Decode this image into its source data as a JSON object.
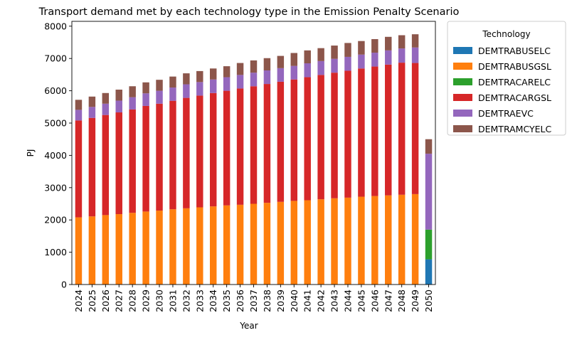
{
  "chart_data": {
    "type": "bar",
    "stacked": true,
    "title": "Transport demand met by each technology type in the Emission Penalty Scenario",
    "xlabel": "Year",
    "ylabel": "PJ",
    "ylim": [
      0,
      8150
    ],
    "yticks": [
      0,
      1000,
      2000,
      3000,
      4000,
      5000,
      6000,
      7000,
      8000
    ],
    "grid": false,
    "legend_title": "Technology",
    "legend_position": "outside-right",
    "categories": [
      "2024",
      "2025",
      "2026",
      "2027",
      "2028",
      "2029",
      "2030",
      "2031",
      "2032",
      "2033",
      "2034",
      "2035",
      "2036",
      "2037",
      "2038",
      "2039",
      "2040",
      "2041",
      "2042",
      "2043",
      "2044",
      "2045",
      "2046",
      "2047",
      "2048",
      "2049",
      "2050"
    ],
    "series": [
      {
        "name": "DEMTRABUSELC",
        "color": "#1f77b4",
        "values": [
          0,
          0,
          0,
          0,
          0,
          0,
          0,
          0,
          0,
          0,
          0,
          0,
          0,
          0,
          0,
          0,
          0,
          0,
          0,
          0,
          0,
          0,
          0,
          0,
          0,
          0,
          780
        ]
      },
      {
        "name": "DEMTRABUSGSL",
        "color": "#ff7f0e",
        "values": [
          2080,
          2110,
          2150,
          2180,
          2220,
          2260,
          2290,
          2330,
          2360,
          2390,
          2420,
          2450,
          2470,
          2500,
          2530,
          2560,
          2590,
          2610,
          2640,
          2670,
          2690,
          2720,
          2740,
          2760,
          2780,
          2800,
          0
        ]
      },
      {
        "name": "DEMTRACARELC",
        "color": "#2ca02c",
        "values": [
          0,
          0,
          0,
          0,
          0,
          0,
          0,
          0,
          0,
          0,
          0,
          0,
          0,
          0,
          0,
          0,
          0,
          0,
          0,
          0,
          0,
          0,
          0,
          0,
          0,
          0,
          920
        ]
      },
      {
        "name": "DEMTRACARGSL",
        "color": "#d62728",
        "values": [
          3000,
          3050,
          3100,
          3150,
          3200,
          3270,
          3310,
          3360,
          3420,
          3460,
          3510,
          3550,
          3600,
          3640,
          3680,
          3720,
          3760,
          3810,
          3850,
          3890,
          3930,
          3970,
          4010,
          4050,
          4090,
          4060,
          0
        ]
      },
      {
        "name": "DEMTRAEVC",
        "color": "#9467bd",
        "values": [
          330,
          340,
          350,
          365,
          380,
          390,
          400,
          410,
          420,
          420,
          420,
          420,
          420,
          420,
          420,
          420,
          420,
          430,
          430,
          430,
          430,
          430,
          430,
          440,
          440,
          480,
          2350
        ]
      },
      {
        "name": "DEMTRAMCYELC",
        "color": "#8c564b",
        "values": [
          310,
          320,
          330,
          340,
          340,
          340,
          340,
          340,
          340,
          340,
          340,
          340,
          370,
          380,
          380,
          380,
          400,
          400,
          400,
          410,
          430,
          420,
          420,
          420,
          410,
          410,
          450
        ]
      }
    ]
  }
}
